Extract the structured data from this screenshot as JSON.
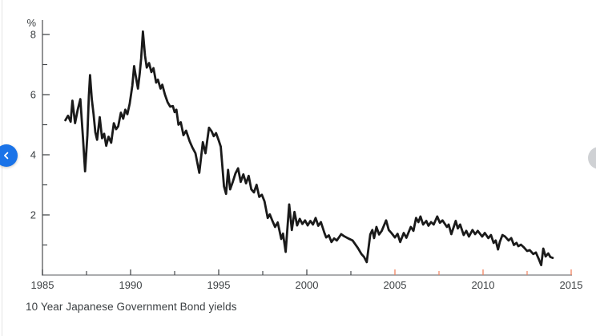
{
  "caption": "10 Year Japanese Government Bond yields",
  "carousel": {
    "prev_button": {
      "icon": "chevron-left",
      "color": "#1a73e8",
      "glyph_color": "#ffffff"
    },
    "next_button": {
      "icon": "chevron-right",
      "color": "#cfd1d4"
    }
  },
  "chart_data": {
    "type": "line",
    "title": "",
    "xlabel": "",
    "ylabel": "%",
    "xlim": [
      1985,
      2015
    ],
    "ylim": [
      0,
      8.48
    ],
    "grid": false,
    "legend": "none",
    "x_ticks_labeled": [
      1985,
      1990,
      1995,
      2000,
      2005,
      2010,
      2015
    ],
    "x_ticks_minor": [
      1987.5,
      1992.5,
      1997.5,
      2002.5,
      2007.5,
      2012.5
    ],
    "x_ticks_accent": [
      2005,
      2007.5,
      2010,
      2012.5,
      2015
    ],
    "y_ticks_labeled": [
      2,
      4,
      6,
      8
    ],
    "y_ticks_minor": [
      1,
      3,
      5,
      7
    ],
    "colors": {
      "line": "#1a1a1a",
      "y_axis": "#636567",
      "x_axis": "#8f9194",
      "tick": "#474a4d",
      "accent_tick": "#f0825f",
      "label": "#3c4043"
    },
    "series": [
      {
        "name": "10 Year Japanese Government Bond yield (%)",
        "points": [
          [
            1986.3,
            5.15
          ],
          [
            1986.45,
            5.3
          ],
          [
            1986.6,
            5.1
          ],
          [
            1986.7,
            5.8
          ],
          [
            1986.85,
            5.05
          ],
          [
            1987.0,
            5.5
          ],
          [
            1987.15,
            5.85
          ],
          [
            1987.3,
            4.55
          ],
          [
            1987.42,
            3.45
          ],
          [
            1987.55,
            4.65
          ],
          [
            1987.63,
            5.95
          ],
          [
            1987.7,
            6.65
          ],
          [
            1987.8,
            5.85
          ],
          [
            1987.9,
            5.35
          ],
          [
            1988.0,
            4.75
          ],
          [
            1988.1,
            4.5
          ],
          [
            1988.25,
            5.25
          ],
          [
            1988.38,
            4.55
          ],
          [
            1988.5,
            4.7
          ],
          [
            1988.62,
            4.3
          ],
          [
            1988.75,
            4.6
          ],
          [
            1988.9,
            4.4
          ],
          [
            1989.05,
            5.05
          ],
          [
            1989.18,
            4.85
          ],
          [
            1989.3,
            4.95
          ],
          [
            1989.45,
            5.4
          ],
          [
            1989.58,
            5.2
          ],
          [
            1989.7,
            5.5
          ],
          [
            1989.82,
            5.35
          ],
          [
            1989.95,
            5.7
          ],
          [
            1990.1,
            6.3
          ],
          [
            1990.2,
            6.95
          ],
          [
            1990.3,
            6.6
          ],
          [
            1990.42,
            6.2
          ],
          [
            1990.52,
            6.7
          ],
          [
            1990.6,
            7.2
          ],
          [
            1990.7,
            8.1
          ],
          [
            1990.82,
            7.3
          ],
          [
            1990.92,
            6.9
          ],
          [
            1991.05,
            7.05
          ],
          [
            1991.18,
            6.75
          ],
          [
            1991.3,
            6.88
          ],
          [
            1991.45,
            6.4
          ],
          [
            1991.55,
            6.5
          ],
          [
            1991.7,
            6.2
          ],
          [
            1991.8,
            6.33
          ],
          [
            1991.95,
            6.0
          ],
          [
            1992.1,
            5.75
          ],
          [
            1992.25,
            5.6
          ],
          [
            1992.4,
            5.62
          ],
          [
            1992.5,
            5.42
          ],
          [
            1992.6,
            5.5
          ],
          [
            1992.72,
            5.0
          ],
          [
            1992.85,
            5.08
          ],
          [
            1993.0,
            4.65
          ],
          [
            1993.15,
            4.8
          ],
          [
            1993.35,
            4.45
          ],
          [
            1993.5,
            4.25
          ],
          [
            1993.68,
            4.05
          ],
          [
            1993.9,
            3.4
          ],
          [
            1994.1,
            4.42
          ],
          [
            1994.25,
            4.05
          ],
          [
            1994.45,
            4.9
          ],
          [
            1994.6,
            4.78
          ],
          [
            1994.72,
            4.62
          ],
          [
            1994.85,
            4.72
          ],
          [
            1995.0,
            4.48
          ],
          [
            1995.12,
            4.27
          ],
          [
            1995.3,
            2.95
          ],
          [
            1995.42,
            2.7
          ],
          [
            1995.53,
            3.5
          ],
          [
            1995.65,
            2.85
          ],
          [
            1995.8,
            3.1
          ],
          [
            1995.95,
            3.38
          ],
          [
            1996.1,
            3.55
          ],
          [
            1996.25,
            3.1
          ],
          [
            1996.4,
            3.35
          ],
          [
            1996.55,
            3.05
          ],
          [
            1996.7,
            3.3
          ],
          [
            1996.85,
            2.85
          ],
          [
            1997.0,
            2.75
          ],
          [
            1997.15,
            3.0
          ],
          [
            1997.3,
            2.6
          ],
          [
            1997.45,
            2.67
          ],
          [
            1997.6,
            2.45
          ],
          [
            1997.78,
            1.9
          ],
          [
            1997.9,
            2.02
          ],
          [
            1998.05,
            1.8
          ],
          [
            1998.2,
            1.6
          ],
          [
            1998.35,
            1.75
          ],
          [
            1998.55,
            1.2
          ],
          [
            1998.65,
            1.38
          ],
          [
            1998.8,
            0.77
          ],
          [
            1999.0,
            2.35
          ],
          [
            1999.15,
            1.5
          ],
          [
            1999.3,
            2.1
          ],
          [
            1999.45,
            1.65
          ],
          [
            1999.6,
            1.87
          ],
          [
            1999.75,
            1.7
          ],
          [
            1999.9,
            1.82
          ],
          [
            2000.05,
            1.65
          ],
          [
            2000.2,
            1.8
          ],
          [
            2000.35,
            1.68
          ],
          [
            2000.5,
            1.9
          ],
          [
            2000.65,
            1.64
          ],
          [
            2000.8,
            1.76
          ],
          [
            2001.0,
            1.4
          ],
          [
            2001.1,
            1.25
          ],
          [
            2001.25,
            1.32
          ],
          [
            2001.4,
            1.1
          ],
          [
            2001.55,
            1.22
          ],
          [
            2001.7,
            1.15
          ],
          [
            2001.95,
            1.36
          ],
          [
            2002.1,
            1.3
          ],
          [
            2002.35,
            1.22
          ],
          [
            2002.6,
            1.15
          ],
          [
            2002.9,
            0.9
          ],
          [
            2003.1,
            0.7
          ],
          [
            2003.25,
            0.6
          ],
          [
            2003.4,
            0.43
          ],
          [
            2003.6,
            1.35
          ],
          [
            2003.72,
            1.5
          ],
          [
            2003.82,
            1.23
          ],
          [
            2003.95,
            1.6
          ],
          [
            2004.1,
            1.35
          ],
          [
            2004.25,
            1.47
          ],
          [
            2004.5,
            1.82
          ],
          [
            2004.65,
            1.5
          ],
          [
            2004.8,
            1.4
          ],
          [
            2005.0,
            1.25
          ],
          [
            2005.15,
            1.37
          ],
          [
            2005.3,
            1.1
          ],
          [
            2005.5,
            1.4
          ],
          [
            2005.65,
            1.24
          ],
          [
            2005.9,
            1.6
          ],
          [
            2006.05,
            1.47
          ],
          [
            2006.2,
            1.9
          ],
          [
            2006.33,
            1.76
          ],
          [
            2006.45,
            1.95
          ],
          [
            2006.6,
            1.68
          ],
          [
            2006.78,
            1.8
          ],
          [
            2006.9,
            1.64
          ],
          [
            2007.05,
            1.76
          ],
          [
            2007.2,
            1.68
          ],
          [
            2007.4,
            1.95
          ],
          [
            2007.55,
            1.74
          ],
          [
            2007.7,
            1.82
          ],
          [
            2007.95,
            1.6
          ],
          [
            2008.05,
            1.68
          ],
          [
            2008.2,
            1.36
          ],
          [
            2008.45,
            1.8
          ],
          [
            2008.57,
            1.55
          ],
          [
            2008.7,
            1.68
          ],
          [
            2008.9,
            1.33
          ],
          [
            2009.05,
            1.47
          ],
          [
            2009.2,
            1.28
          ],
          [
            2009.4,
            1.5
          ],
          [
            2009.55,
            1.36
          ],
          [
            2009.7,
            1.47
          ],
          [
            2009.95,
            1.28
          ],
          [
            2010.1,
            1.4
          ],
          [
            2010.3,
            1.23
          ],
          [
            2010.45,
            1.33
          ],
          [
            2010.6,
            1.07
          ],
          [
            2010.72,
            1.15
          ],
          [
            2010.85,
            0.85
          ],
          [
            2010.95,
            1.1
          ],
          [
            2011.1,
            1.33
          ],
          [
            2011.25,
            1.28
          ],
          [
            2011.45,
            1.15
          ],
          [
            2011.6,
            1.23
          ],
          [
            2011.75,
            1.0
          ],
          [
            2011.9,
            1.07
          ],
          [
            2012.0,
            0.96
          ],
          [
            2012.15,
            1.01
          ],
          [
            2012.3,
            0.93
          ],
          [
            2012.5,
            0.8
          ],
          [
            2012.65,
            0.83
          ],
          [
            2012.85,
            0.7
          ],
          [
            2013.0,
            0.75
          ],
          [
            2013.15,
            0.55
          ],
          [
            2013.3,
            0.33
          ],
          [
            2013.42,
            0.88
          ],
          [
            2013.55,
            0.62
          ],
          [
            2013.7,
            0.72
          ],
          [
            2013.82,
            0.6
          ],
          [
            2013.95,
            0.57
          ]
        ]
      }
    ]
  }
}
